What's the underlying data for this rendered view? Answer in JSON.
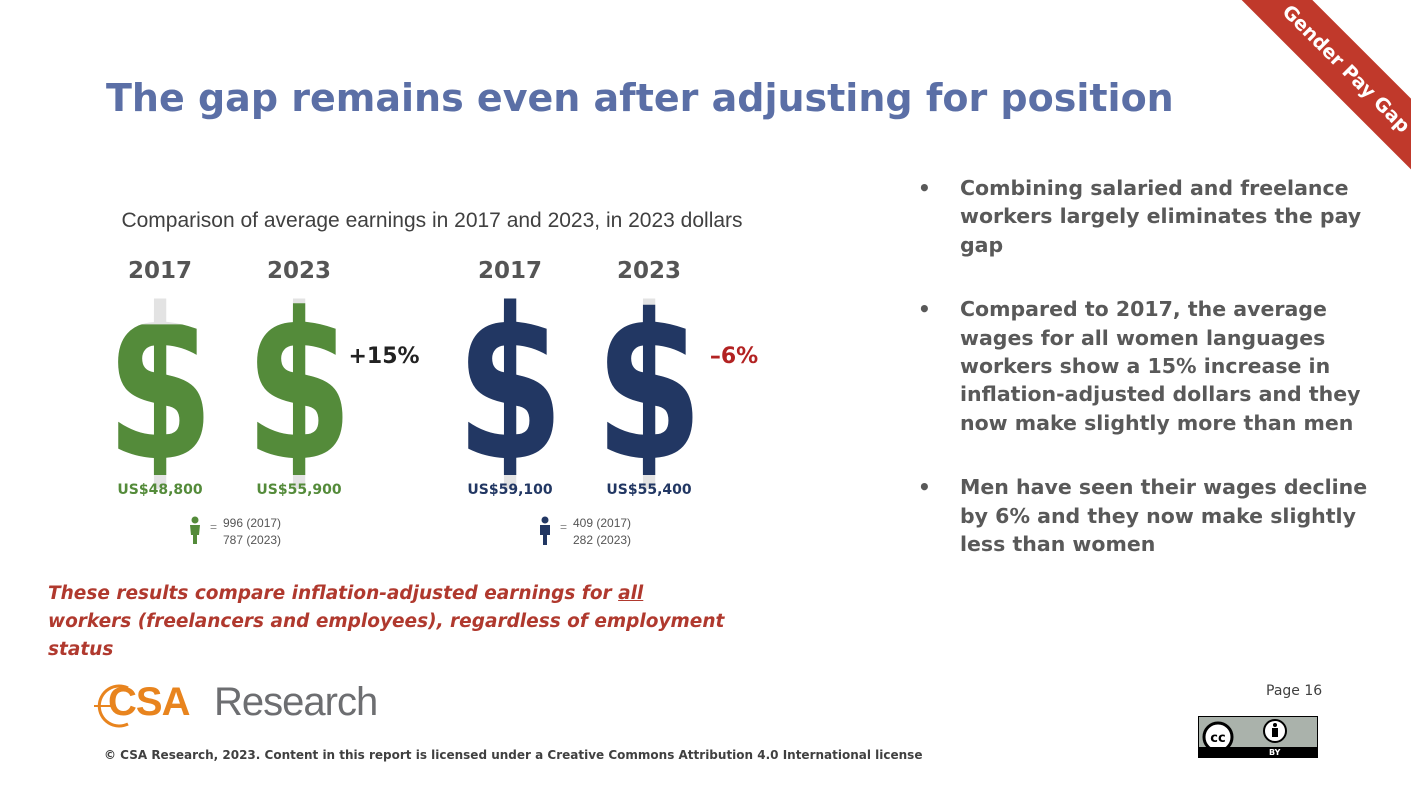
{
  "title": "The gap remains even after adjusting for position",
  "corner_ribbon": "Gender Pay Gap",
  "chart_data": {
    "type": "bar",
    "title": "Comparison of average earnings in 2017 and 2023, in 2023 dollars",
    "groups": [
      {
        "gender_icon": "female-icon",
        "color": "#548b3a",
        "bars": [
          {
            "year": "2017",
            "value": 48800,
            "label": "US$48,800"
          },
          {
            "year": "2023",
            "value": 55900,
            "label": "US$55,900"
          }
        ],
        "change": "+15%",
        "change_color": "#222222",
        "sample_2017": "996 (2017)",
        "sample_2023": "787 (2023)"
      },
      {
        "gender_icon": "male-icon",
        "color": "#223763",
        "bars": [
          {
            "year": "2017",
            "value": 59100,
            "label": "US$59,100"
          },
          {
            "year": "2023",
            "value": 55400,
            "label": "US$55,400"
          }
        ],
        "change": "–6%",
        "change_color": "#b22222",
        "sample_2017": "409 (2017)",
        "sample_2023": "282 (2023)"
      }
    ],
    "ylim": [
      0,
      60000
    ],
    "equals_sign": "="
  },
  "note": {
    "part1": "These results compare inflation-adjusted earnings for ",
    "emphasis": "all",
    "part2": " workers (freelancers and employees), regardless of employment status"
  },
  "bullets": [
    "Combining salaried and freelance workers largely eliminates the pay gap",
    "Compared to 2017, the average wages for all women languages workers show a 15% increase in inflation-adjusted dollars and they now make slightly more than men",
    "Men have seen their wages decline by 6% and they now make slightly less than women"
  ],
  "bullet_char": "•",
  "logo": {
    "csa": "CSA",
    "research": "Research"
  },
  "copyright": "© CSA Research, 2023. Content in this report is licensed under a Creative Commons Attribution 4.0 International license",
  "page_label": "Page 16",
  "cc_badge": {
    "by": "BY"
  },
  "colors": {
    "title": "#5b6fa6",
    "ribbon": "#c0392b",
    "accent": "#e8841e",
    "empty": "#e3e3e3"
  }
}
